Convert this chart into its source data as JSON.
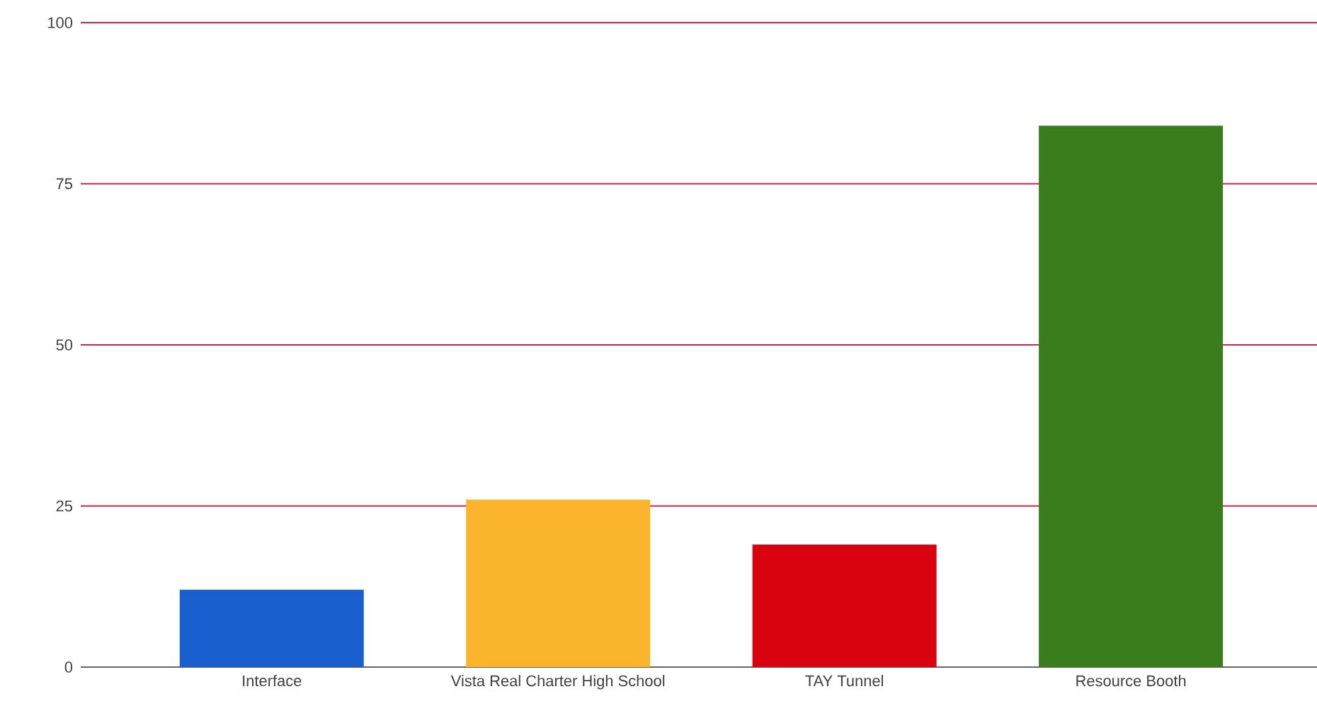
{
  "chart_data": {
    "type": "bar",
    "categories": [
      "Interface",
      "Vista Real Charter High School",
      "TAY Tunnel",
      "Resource Booth"
    ],
    "values": [
      12,
      26,
      19,
      84
    ],
    "colors": [
      "#1a5fd0",
      "#fbb52c",
      "#d9020f",
      "#3a7d1c"
    ],
    "ylim": [
      0,
      100
    ],
    "yticks": [
      0,
      25,
      50,
      75,
      100
    ],
    "grid": "y"
  }
}
